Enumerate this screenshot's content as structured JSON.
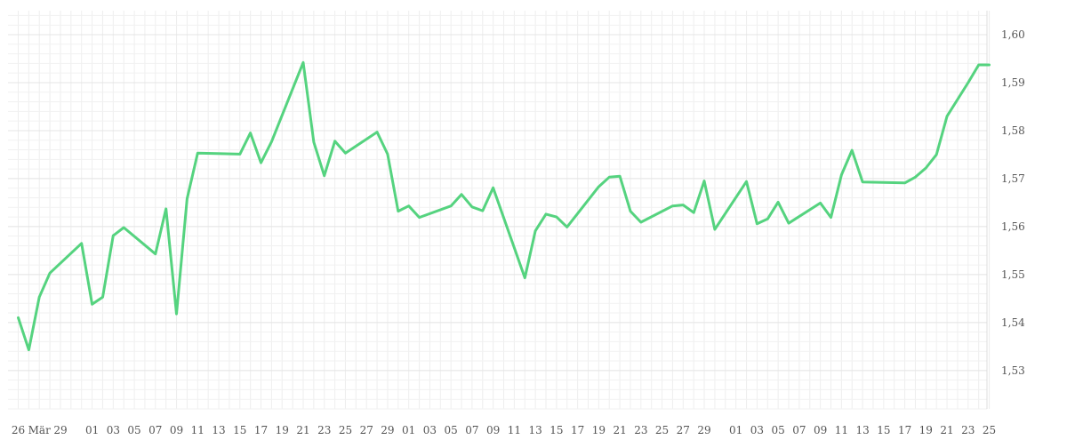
{
  "chart_data": {
    "type": "line",
    "title": "",
    "xlabel": "",
    "ylabel": "",
    "ylim": [
      1.522,
      1.605
    ],
    "yticks": [
      1.53,
      1.54,
      1.55,
      1.56,
      1.57,
      1.58,
      1.59,
      1.6
    ],
    "ytick_labels": [
      "1,53",
      "1,54",
      "1,55",
      "1,56",
      "1,57",
      "1,58",
      "1,59",
      "1,60"
    ],
    "xlim": [
      0,
      91
    ],
    "xticks": [
      {
        "i": 0,
        "label": "26"
      },
      {
        "i": 2,
        "label": "Mär"
      },
      {
        "i": 4,
        "label": "29"
      },
      {
        "i": 7,
        "label": "01"
      },
      {
        "i": 9,
        "label": "03"
      },
      {
        "i": 11,
        "label": "05"
      },
      {
        "i": 13,
        "label": "07"
      },
      {
        "i": 15,
        "label": "09"
      },
      {
        "i": 17,
        "label": "11"
      },
      {
        "i": 19,
        "label": "13"
      },
      {
        "i": 21,
        "label": "15"
      },
      {
        "i": 23,
        "label": "17"
      },
      {
        "i": 25,
        "label": "19"
      },
      {
        "i": 27,
        "label": "21"
      },
      {
        "i": 29,
        "label": "23"
      },
      {
        "i": 31,
        "label": "25"
      },
      {
        "i": 33,
        "label": "27"
      },
      {
        "i": 35,
        "label": "29"
      },
      {
        "i": 37,
        "label": "01"
      },
      {
        "i": 39,
        "label": "03"
      },
      {
        "i": 41,
        "label": "05"
      },
      {
        "i": 43,
        "label": "07"
      },
      {
        "i": 45,
        "label": "09"
      },
      {
        "i": 47,
        "label": "11"
      },
      {
        "i": 49,
        "label": "13"
      },
      {
        "i": 51,
        "label": "15"
      },
      {
        "i": 53,
        "label": "17"
      },
      {
        "i": 55,
        "label": "19"
      },
      {
        "i": 57,
        "label": "21"
      },
      {
        "i": 59,
        "label": "23"
      },
      {
        "i": 61,
        "label": "25"
      },
      {
        "i": 63,
        "label": "27"
      },
      {
        "i": 65,
        "label": "29"
      },
      {
        "i": 68,
        "label": "01"
      },
      {
        "i": 70,
        "label": "03"
      },
      {
        "i": 72,
        "label": "05"
      },
      {
        "i": 74,
        "label": "07"
      },
      {
        "i": 76,
        "label": "09"
      },
      {
        "i": 78,
        "label": "11"
      },
      {
        "i": 80,
        "label": "13"
      },
      {
        "i": 82,
        "label": "15"
      },
      {
        "i": 84,
        "label": "17"
      },
      {
        "i": 86,
        "label": "19"
      },
      {
        "i": 88,
        "label": "21"
      },
      {
        "i": 90,
        "label": "23"
      },
      {
        "i": 92,
        "label": "25"
      }
    ],
    "grid": true,
    "line_color": "#55d37f",
    "series": [
      {
        "points": [
          [
            0,
            1.541
          ],
          [
            1,
            1.5343
          ],
          [
            2,
            1.5453
          ],
          [
            3,
            1.5503
          ],
          [
            6,
            1.5565
          ],
          [
            7,
            1.5438
          ],
          [
            8,
            1.5453
          ],
          [
            9,
            1.5581
          ],
          [
            10,
            1.5598
          ],
          [
            13,
            1.5543
          ],
          [
            14,
            1.5637
          ],
          [
            15,
            1.5418
          ],
          [
            16,
            1.5658
          ],
          [
            17,
            1.5753
          ],
          [
            21,
            1.5751
          ],
          [
            22,
            1.5795
          ],
          [
            23,
            1.5733
          ],
          [
            24,
            1.5777
          ],
          [
            27,
            1.5942
          ],
          [
            28,
            1.5776
          ],
          [
            29,
            1.5706
          ],
          [
            30,
            1.5778
          ],
          [
            31,
            1.5753
          ],
          [
            34,
            1.5797
          ],
          [
            35,
            1.5751
          ],
          [
            36,
            1.5632
          ],
          [
            37,
            1.5643
          ],
          [
            38,
            1.5619
          ],
          [
            41,
            1.5643
          ],
          [
            42,
            1.5667
          ],
          [
            43,
            1.5641
          ],
          [
            44,
            1.5633
          ],
          [
            45,
            1.5681
          ],
          [
            48,
            1.5493
          ],
          [
            49,
            1.5591
          ],
          [
            50,
            1.5626
          ],
          [
            51,
            1.562
          ],
          [
            52,
            1.5599
          ],
          [
            55,
            1.5683
          ],
          [
            56,
            1.5703
          ],
          [
            57,
            1.5705
          ],
          [
            58,
            1.5632
          ],
          [
            59,
            1.5609
          ],
          [
            62,
            1.5643
          ],
          [
            63,
            1.5645
          ],
          [
            64,
            1.5629
          ],
          [
            65,
            1.5695
          ],
          [
            66,
            1.5594
          ],
          [
            69,
            1.5694
          ],
          [
            70,
            1.5606
          ],
          [
            71,
            1.5616
          ],
          [
            72,
            1.5651
          ],
          [
            73,
            1.5607
          ],
          [
            76,
            1.5649
          ],
          [
            77,
            1.5619
          ],
          [
            78,
            1.5708
          ],
          [
            79,
            1.5759
          ],
          [
            80,
            1.5693
          ],
          [
            84,
            1.5691
          ],
          [
            85,
            1.5703
          ],
          [
            86,
            1.5722
          ],
          [
            87,
            1.575
          ],
          [
            88,
            1.583
          ],
          [
            90,
            1.59
          ],
          [
            91,
            1.5937
          ],
          [
            92,
            1.5937
          ]
        ]
      }
    ]
  }
}
